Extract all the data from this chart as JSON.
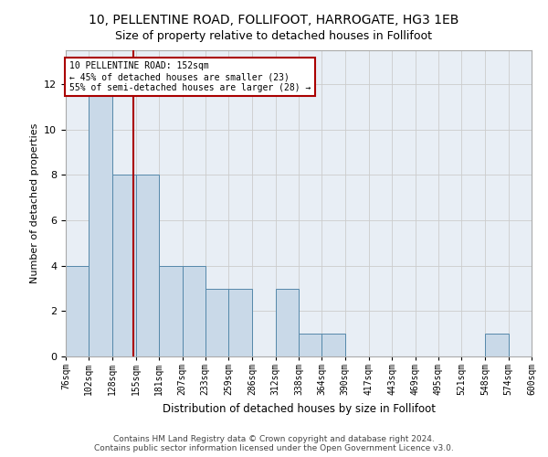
{
  "title": "10, PELLENTINE ROAD, FOLLIFOOT, HARROGATE, HG3 1EB",
  "subtitle": "Size of property relative to detached houses in Follifoot",
  "xlabel": "Distribution of detached houses by size in Follifoot",
  "ylabel": "Number of detached properties",
  "bar_values": [
    4,
    12,
    8,
    8,
    4,
    4,
    3,
    3,
    0,
    3,
    1,
    1,
    0,
    0,
    0,
    0,
    0,
    0,
    1,
    0
  ],
  "bin_edges": [
    76,
    102,
    128,
    155,
    181,
    207,
    233,
    259,
    286,
    312,
    338,
    364,
    390,
    417,
    443,
    469,
    495,
    521,
    548,
    574,
    600
  ],
  "xlabels": [
    "76sqm",
    "102sqm",
    "128sqm",
    "155sqm",
    "181sqm",
    "207sqm",
    "233sqm",
    "259sqm",
    "286sqm",
    "312sqm",
    "338sqm",
    "364sqm",
    "390sqm",
    "417sqm",
    "443sqm",
    "469sqm",
    "495sqm",
    "521sqm",
    "548sqm",
    "574sqm",
    "600sqm"
  ],
  "bar_color": "#c9d9e8",
  "bar_edge_color": "#5588aa",
  "grid_color": "#cccccc",
  "bg_color": "#e8eef5",
  "vline_x": 152,
  "vline_color": "#aa0000",
  "annotation_line1": "10 PELLENTINE ROAD: 152sqm",
  "annotation_line2": "← 45% of detached houses are smaller (23)",
  "annotation_line3": "55% of semi-detached houses are larger (28) →",
  "annotation_box_color": "#aa0000",
  "ylim": [
    0,
    13.5
  ],
  "yticks": [
    0,
    2,
    4,
    6,
    8,
    10,
    12
  ],
  "footer1": "Contains HM Land Registry data © Crown copyright and database right 2024.",
  "footer2": "Contains public sector information licensed under the Open Government Licence v3.0."
}
